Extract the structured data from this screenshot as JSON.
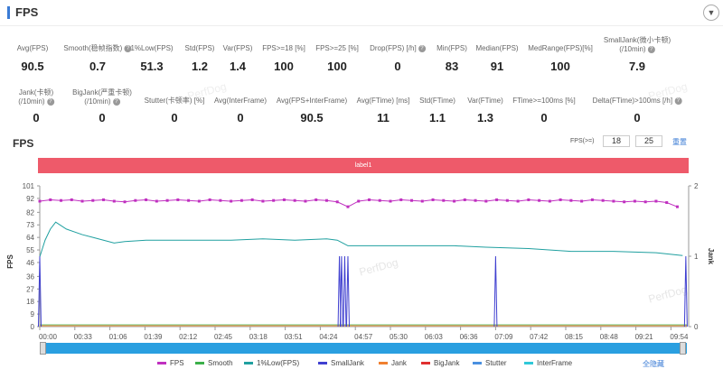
{
  "header": {
    "title": "FPS",
    "dropdown_icon": "chevron-down-icon"
  },
  "stats_row1": [
    {
      "label": "Avg(FPS)",
      "value": "90.5"
    },
    {
      "label": "Smooth(稳帧指数)",
      "value": "0.7",
      "help": true
    },
    {
      "label": "1%Low(FPS)",
      "value": "51.3"
    },
    {
      "label": "Std(FPS)",
      "value": "1.2"
    },
    {
      "label": "Var(FPS)",
      "value": "1.4"
    },
    {
      "label": "FPS>=18 [%]",
      "value": "100"
    },
    {
      "label": "FPS>=25 [%]",
      "value": "100"
    },
    {
      "label": "Drop(FPS) [/h]",
      "value": "0",
      "help": true
    },
    {
      "label": "Min(FPS)",
      "value": "83"
    },
    {
      "label": "Median(FPS)",
      "value": "91"
    },
    {
      "label": "MedRange(FPS)[%]",
      "value": "100"
    },
    {
      "label": "SmallJank(微小卡顿)",
      "label2": "(/10min)",
      "value": "7.9",
      "help": true
    }
  ],
  "stats_row2": [
    {
      "label": "Jank(卡顿)",
      "label2": "(/10min)",
      "value": "0",
      "help": true
    },
    {
      "label": "BigJank(严重卡顿)",
      "label2": "(/10min)",
      "value": "0",
      "help": true
    },
    {
      "label": "Stutter(卡顿率) [%]",
      "value": "0"
    },
    {
      "label": "Avg(InterFrame)",
      "value": "0"
    },
    {
      "label": "Avg(FPS+InterFrame)",
      "value": "90.5"
    },
    {
      "label": "Avg(FTime) [ms]",
      "value": "11"
    },
    {
      "label": "Std(FTime)",
      "value": "1.1"
    },
    {
      "label": "Var(FTime)",
      "value": "1.3"
    },
    {
      "label": "FTime>=100ms [%]",
      "value": "0"
    },
    {
      "label": "Delta(FTime)>100ms [/h]",
      "value": "0",
      "help": true
    }
  ],
  "chart": {
    "title": "FPS",
    "fps_threshold_label": "FPS(>=)",
    "threshold1": "18",
    "threshold2": "25",
    "reset_label": "重置",
    "label_bar": "label1",
    "hide_all_label": "全隐藏",
    "watermark": "PerfDog"
  },
  "chart_data": {
    "type": "line",
    "ylabel": "FPS",
    "y2label": "Jank",
    "yticks": [
      "0",
      "9",
      "18",
      "27",
      "36",
      "46",
      "55",
      "64",
      "73",
      "82",
      "92",
      "101"
    ],
    "ylim": [
      0,
      101
    ],
    "y2lim": [
      0,
      2
    ],
    "y2ticks": [
      "0",
      "1",
      "2"
    ],
    "xticks": [
      "00:00",
      "00:33",
      "01:06",
      "01:39",
      "02:12",
      "02:45",
      "03:18",
      "03:51",
      "04:24",
      "04:57",
      "05:30",
      "06:03",
      "06:36",
      "07:09",
      "07:42",
      "08:15",
      "08:48",
      "09:21",
      "09:54"
    ],
    "legend": [
      {
        "name": "FPS",
        "color": "#c030c0"
      },
      {
        "name": "Smooth",
        "color": "#3cb04a"
      },
      {
        "name": "1%Low(FPS)",
        "color": "#20a0a0"
      },
      {
        "name": "SmallJank",
        "color": "#4040d0"
      },
      {
        "name": "Jank",
        "color": "#f08030"
      },
      {
        "name": "BigJank",
        "color": "#e03030"
      },
      {
        "name": "Stutter",
        "color": "#4a90e0"
      },
      {
        "name": "InterFrame",
        "color": "#30c8d8"
      }
    ],
    "legend_position": "bottom",
    "series": {
      "FPS": {
        "x_seconds_step": 10,
        "values": [
          90,
          91,
          90.5,
          91,
          90,
          90.5,
          91,
          90,
          89.5,
          90.5,
          91,
          90,
          90.5,
          91,
          90.5,
          90,
          91,
          90.5,
          90,
          90.5,
          91,
          90,
          90.5,
          91,
          90.5,
          90,
          91,
          90.5,
          89.5,
          86,
          90,
          91,
          90.5,
          90,
          91,
          90.5,
          90,
          91,
          90.5,
          90,
          91,
          90.5,
          90,
          91,
          90.5,
          90,
          91,
          90.5,
          90,
          91,
          90.5,
          90,
          91,
          90.5,
          90,
          89.5,
          90,
          89.5,
          90,
          89,
          86
        ]
      },
      "1%Low(FPS)": {
        "points": [
          [
            "00:00",
            50
          ],
          [
            "00:05",
            62
          ],
          [
            "00:10",
            70
          ],
          [
            "00:15",
            75
          ],
          [
            "00:25",
            70
          ],
          [
            "00:40",
            66
          ],
          [
            "00:50",
            64
          ],
          [
            "01:00",
            62
          ],
          [
            "01:10",
            60
          ],
          [
            "01:20",
            61
          ],
          [
            "01:40",
            62
          ],
          [
            "02:30",
            62
          ],
          [
            "03:00",
            62
          ],
          [
            "03:30",
            63
          ],
          [
            "04:00",
            62
          ],
          [
            "04:30",
            63
          ],
          [
            "04:40",
            62
          ],
          [
            "04:50",
            58
          ],
          [
            "05:30",
            58
          ],
          [
            "06:30",
            58
          ],
          [
            "07:00",
            57
          ],
          [
            "07:40",
            56
          ],
          [
            "08:20",
            54
          ],
          [
            "09:00",
            54
          ],
          [
            "09:40",
            53
          ],
          [
            "10:05",
            51
          ]
        ]
      },
      "SmallJank": {
        "spikes": [
          "00:00",
          "04:42",
          "04:44",
          "04:47",
          "04:50",
          "07:09",
          "10:08"
        ],
        "value": 1
      },
      "Smooth": {
        "baseline": 0
      }
    }
  }
}
